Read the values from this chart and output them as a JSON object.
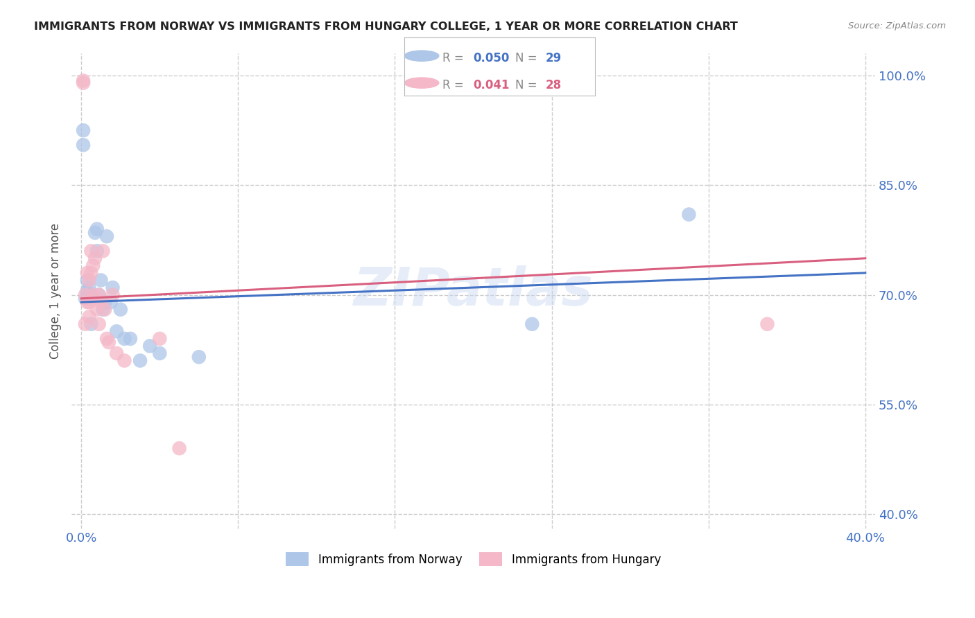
{
  "title": "IMMIGRANTS FROM NORWAY VS IMMIGRANTS FROM HUNGARY COLLEGE, 1 YEAR OR MORE CORRELATION CHART",
  "source": "Source: ZipAtlas.com",
  "ylabel": "College, 1 year or more",
  "norway_label": "Immigrants from Norway",
  "hungary_label": "Immigrants from Hungary",
  "norway_R": "0.050",
  "norway_N": "29",
  "hungary_R": "0.041",
  "hungary_N": "28",
  "norway_color": "#aec6e8",
  "hungary_color": "#f4b8c8",
  "norway_line_color": "#4472c4",
  "hungary_line_color": "#d95f7f",
  "xlim": [
    0.0,
    0.4
  ],
  "ylim": [
    0.4,
    1.0
  ],
  "xticks": [
    0.0,
    0.08,
    0.16,
    0.24,
    0.32,
    0.4
  ],
  "yticks_right": [
    1.0,
    0.85,
    0.7,
    0.55,
    0.4
  ],
  "ytick_labels_right": [
    "100.0%",
    "85.0%",
    "70.0%",
    "55.0%",
    "40.0%"
  ],
  "norway_x": [
    0.001,
    0.001,
    0.002,
    0.003,
    0.003,
    0.004,
    0.005,
    0.005,
    0.006,
    0.007,
    0.008,
    0.008,
    0.009,
    0.01,
    0.011,
    0.012,
    0.013,
    0.015,
    0.016,
    0.018,
    0.02,
    0.022,
    0.025,
    0.03,
    0.035,
    0.04,
    0.06,
    0.23,
    0.31
  ],
  "norway_y": [
    0.925,
    0.905,
    0.695,
    0.705,
    0.72,
    0.71,
    0.7,
    0.66,
    0.695,
    0.785,
    0.79,
    0.76,
    0.7,
    0.72,
    0.68,
    0.69,
    0.78,
    0.69,
    0.71,
    0.65,
    0.68,
    0.64,
    0.64,
    0.61,
    0.63,
    0.62,
    0.615,
    0.66,
    0.81
  ],
  "hungary_x": [
    0.001,
    0.001,
    0.002,
    0.002,
    0.003,
    0.003,
    0.004,
    0.004,
    0.004,
    0.005,
    0.005,
    0.006,
    0.006,
    0.007,
    0.008,
    0.009,
    0.009,
    0.01,
    0.011,
    0.012,
    0.013,
    0.014,
    0.016,
    0.018,
    0.022,
    0.04,
    0.05,
    0.35
  ],
  "hungary_y": [
    0.993,
    0.99,
    0.7,
    0.66,
    0.69,
    0.73,
    0.72,
    0.69,
    0.67,
    0.76,
    0.73,
    0.74,
    0.7,
    0.75,
    0.68,
    0.7,
    0.66,
    0.69,
    0.76,
    0.68,
    0.64,
    0.635,
    0.7,
    0.62,
    0.61,
    0.64,
    0.49,
    0.66
  ],
  "norway_line_x": [
    0.0,
    0.4
  ],
  "norway_line_y": [
    0.69,
    0.73
  ],
  "hungary_line_x": [
    0.0,
    0.4
  ],
  "hungary_line_y": [
    0.695,
    0.75
  ],
  "watermark": "ZIPatlas",
  "background_color": "#ffffff",
  "grid_color": "#cccccc"
}
